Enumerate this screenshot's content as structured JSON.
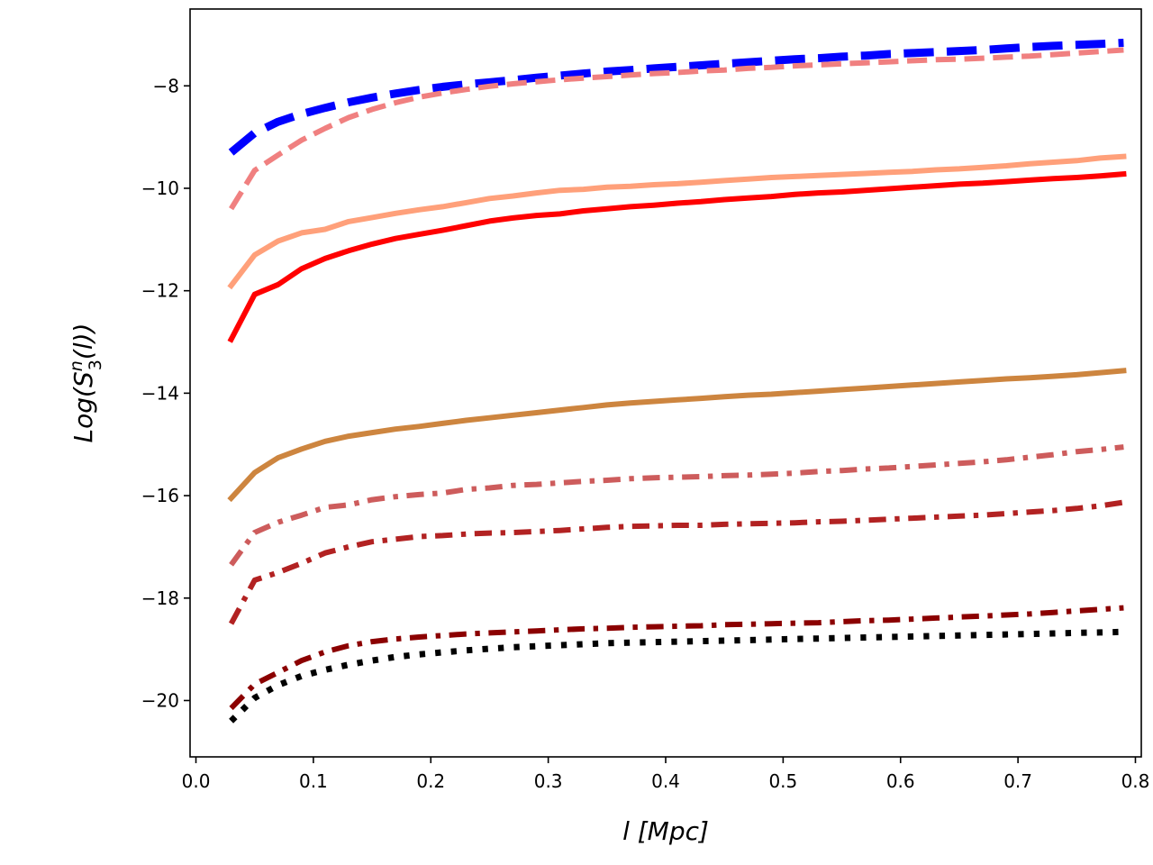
{
  "chart_data": {
    "type": "line",
    "title": "",
    "xlabel": "l [Mpc]",
    "ylabel_parts": {
      "prefix": "Log(S",
      "sup": "n",
      "sub": "3",
      "suffix": "(l))"
    },
    "xlim": [
      -0.005,
      0.805
    ],
    "ylim": [
      -21.1,
      -6.5
    ],
    "x_ticks": [
      0.0,
      0.1,
      0.2,
      0.3,
      0.4,
      0.5,
      0.6,
      0.7,
      0.8
    ],
    "x_tick_labels": [
      "0.0",
      "0.1",
      "0.2",
      "0.3",
      "0.4",
      "0.5",
      "0.6",
      "0.7",
      "0.8"
    ],
    "y_ticks": [
      -8,
      -10,
      -12,
      -14,
      -16,
      -18,
      -20
    ],
    "y_tick_labels": [
      "−8",
      "−10",
      "−12",
      "−14",
      "−16",
      "−18",
      "−20"
    ],
    "grid": false,
    "x": [
      0.03,
      0.05,
      0.07,
      0.09,
      0.11,
      0.13,
      0.15,
      0.17,
      0.19,
      0.21,
      0.23,
      0.25,
      0.27,
      0.29,
      0.31,
      0.33,
      0.35,
      0.37,
      0.39,
      0.41,
      0.43,
      0.45,
      0.47,
      0.49,
      0.51,
      0.53,
      0.55,
      0.57,
      0.59,
      0.61,
      0.63,
      0.65,
      0.67,
      0.69,
      0.71,
      0.73,
      0.75,
      0.77,
      0.79
    ],
    "series": [
      {
        "name": "blue-dashed",
        "color": "#0000ff",
        "style": "dashed",
        "width": 9,
        "values": [
          -9.3,
          -8.92,
          -8.7,
          -8.55,
          -8.43,
          -8.32,
          -8.23,
          -8.15,
          -8.08,
          -8.02,
          -7.97,
          -7.93,
          -7.89,
          -7.84,
          -7.8,
          -7.76,
          -7.72,
          -7.69,
          -7.66,
          -7.63,
          -7.6,
          -7.57,
          -7.54,
          -7.51,
          -7.48,
          -7.46,
          -7.43,
          -7.41,
          -7.38,
          -7.36,
          -7.34,
          -7.32,
          -7.3,
          -7.27,
          -7.24,
          -7.22,
          -7.2,
          -7.18,
          -7.16
        ]
      },
      {
        "name": "lightcoral-dashed",
        "color": "#f08080",
        "style": "dashed",
        "width": 6,
        "values": [
          -10.4,
          -9.65,
          -9.35,
          -9.06,
          -8.83,
          -8.62,
          -8.46,
          -8.33,
          -8.22,
          -8.14,
          -8.07,
          -8.01,
          -7.96,
          -7.92,
          -7.88,
          -7.85,
          -7.82,
          -7.79,
          -7.76,
          -7.74,
          -7.71,
          -7.69,
          -7.66,
          -7.64,
          -7.61,
          -7.59,
          -7.57,
          -7.55,
          -7.53,
          -7.51,
          -7.49,
          -7.48,
          -7.46,
          -7.44,
          -7.42,
          -7.39,
          -7.36,
          -7.33,
          -7.3
        ]
      },
      {
        "name": "lightsalmon-solid",
        "color": "#ffa07a",
        "style": "solid",
        "width": 6,
        "values": [
          -11.9,
          -11.3,
          -11.03,
          -10.87,
          -10.8,
          -10.65,
          -10.57,
          -10.49,
          -10.42,
          -10.36,
          -10.28,
          -10.2,
          -10.15,
          -10.09,
          -10.04,
          -10.02,
          -9.98,
          -9.96,
          -9.93,
          -9.91,
          -9.88,
          -9.85,
          -9.82,
          -9.79,
          -9.77,
          -9.75,
          -9.73,
          -9.71,
          -9.69,
          -9.67,
          -9.64,
          -9.62,
          -9.59,
          -9.56,
          -9.52,
          -9.49,
          -9.46,
          -9.41,
          -9.38
        ]
      },
      {
        "name": "red-solid",
        "color": "#ff0000",
        "style": "solid",
        "width": 6,
        "values": [
          -12.95,
          -12.07,
          -11.88,
          -11.57,
          -11.37,
          -11.22,
          -11.09,
          -10.98,
          -10.9,
          -10.82,
          -10.73,
          -10.64,
          -10.58,
          -10.53,
          -10.5,
          -10.44,
          -10.4,
          -10.36,
          -10.33,
          -10.29,
          -10.26,
          -10.22,
          -10.19,
          -10.16,
          -10.12,
          -10.09,
          -10.07,
          -10.04,
          -10.01,
          -9.98,
          -9.95,
          -9.92,
          -9.9,
          -9.87,
          -9.84,
          -9.81,
          -9.79,
          -9.76,
          -9.72
        ]
      },
      {
        "name": "peru-solid",
        "color": "#cd853f",
        "style": "solid",
        "width": 6,
        "values": [
          -16.05,
          -15.55,
          -15.26,
          -15.09,
          -14.94,
          -14.84,
          -14.77,
          -14.7,
          -14.65,
          -14.59,
          -14.53,
          -14.48,
          -14.43,
          -14.38,
          -14.33,
          -14.28,
          -14.23,
          -14.19,
          -14.16,
          -14.13,
          -14.1,
          -14.07,
          -14.04,
          -14.02,
          -13.99,
          -13.96,
          -13.93,
          -13.9,
          -13.87,
          -13.84,
          -13.81,
          -13.78,
          -13.75,
          -13.72,
          -13.7,
          -13.67,
          -13.64,
          -13.6,
          -13.56
        ]
      },
      {
        "name": "indianred-dashdot",
        "color": "#cd5c5c",
        "style": "dashdot",
        "width": 6,
        "values": [
          -17.35,
          -16.72,
          -16.52,
          -16.38,
          -16.23,
          -16.18,
          -16.08,
          -16.02,
          -15.98,
          -15.95,
          -15.88,
          -15.85,
          -15.8,
          -15.78,
          -15.75,
          -15.72,
          -15.7,
          -15.67,
          -15.65,
          -15.64,
          -15.63,
          -15.61,
          -15.6,
          -15.58,
          -15.56,
          -15.53,
          -15.51,
          -15.48,
          -15.46,
          -15.43,
          -15.4,
          -15.37,
          -15.34,
          -15.3,
          -15.25,
          -15.2,
          -15.14,
          -15.1,
          -15.05
        ]
      },
      {
        "name": "firebrick-dashdot",
        "color": "#b22222",
        "style": "dashdot",
        "width": 6,
        "values": [
          -18.5,
          -17.65,
          -17.5,
          -17.32,
          -17.12,
          -17.0,
          -16.9,
          -16.85,
          -16.8,
          -16.78,
          -16.75,
          -16.73,
          -16.72,
          -16.7,
          -16.68,
          -16.65,
          -16.62,
          -16.6,
          -16.59,
          -16.58,
          -16.58,
          -16.56,
          -16.55,
          -16.54,
          -16.53,
          -16.51,
          -16.5,
          -16.48,
          -16.46,
          -16.44,
          -16.42,
          -16.4,
          -16.38,
          -16.35,
          -16.32,
          -16.29,
          -16.25,
          -16.2,
          -16.13
        ]
      },
      {
        "name": "darkred-dashdot",
        "color": "#8b0000",
        "style": "dashdot",
        "width": 6,
        "values": [
          -20.15,
          -19.68,
          -19.45,
          -19.22,
          -19.05,
          -18.93,
          -18.85,
          -18.8,
          -18.76,
          -18.73,
          -18.7,
          -18.68,
          -18.66,
          -18.64,
          -18.62,
          -18.6,
          -18.59,
          -18.57,
          -18.56,
          -18.55,
          -18.54,
          -18.52,
          -18.51,
          -18.5,
          -18.49,
          -18.48,
          -18.46,
          -18.44,
          -18.43,
          -18.41,
          -18.39,
          -18.37,
          -18.35,
          -18.33,
          -18.31,
          -18.28,
          -18.25,
          -18.22,
          -18.19
        ]
      },
      {
        "name": "black-dotted",
        "color": "#000000",
        "style": "dotted",
        "width": 7,
        "values": [
          -20.4,
          -19.95,
          -19.7,
          -19.52,
          -19.4,
          -19.3,
          -19.22,
          -19.15,
          -19.1,
          -19.06,
          -19.02,
          -18.99,
          -18.96,
          -18.94,
          -18.92,
          -18.9,
          -18.88,
          -18.87,
          -18.86,
          -18.85,
          -18.84,
          -18.83,
          -18.82,
          -18.81,
          -18.8,
          -18.79,
          -18.78,
          -18.77,
          -18.76,
          -18.75,
          -18.74,
          -18.73,
          -18.72,
          -18.71,
          -18.7,
          -18.69,
          -18.68,
          -18.67,
          -18.66
        ]
      }
    ]
  }
}
